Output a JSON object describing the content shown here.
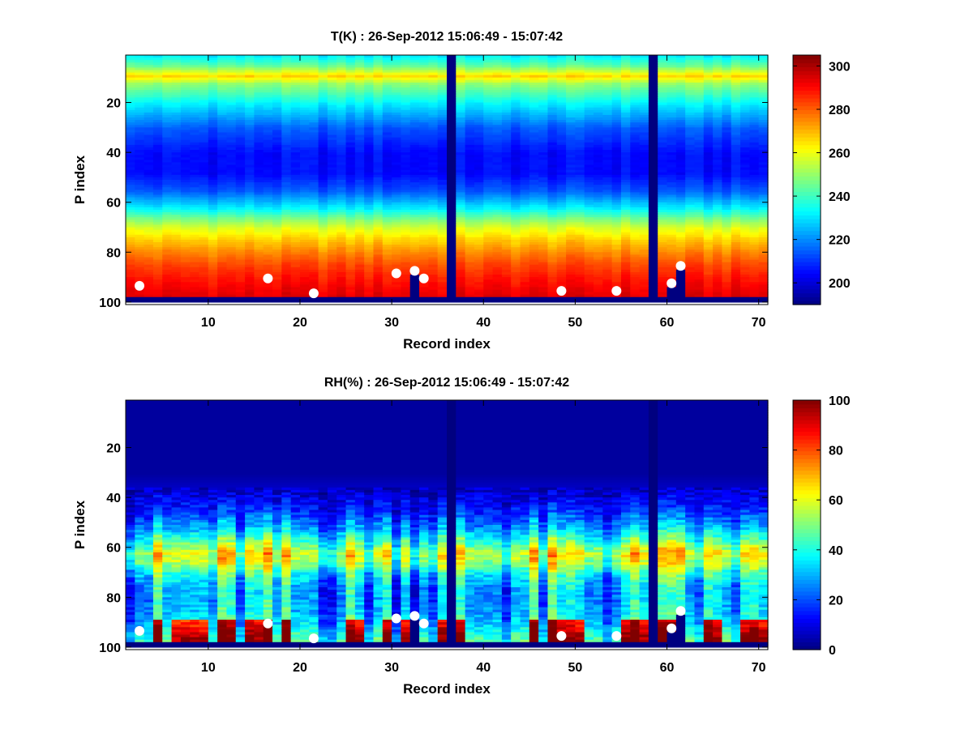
{
  "colormap": "jet",
  "background": "#ffffff",
  "chart_data": [
    {
      "type": "heatmap",
      "title": "T(K) : 26-Sep-2012 15:06:49 - 15:07:42",
      "xlabel": "Record index",
      "ylabel": "P index",
      "xlim": [
        1,
        71
      ],
      "ylim": [
        1,
        101
      ],
      "y_reversed": true,
      "xticks": [
        10,
        20,
        30,
        40,
        50,
        60,
        70
      ],
      "yticks": [
        20,
        40,
        60,
        80,
        100
      ],
      "records": 70,
      "levels": 100,
      "bottom_fill_value": 190,
      "missing_records": [
        36,
        58
      ],
      "profile": {
        "p_index": [
          1,
          5,
          9,
          12,
          20,
          30,
          40,
          48,
          55,
          62,
          66,
          70,
          75,
          80,
          85,
          90,
          95,
          98
        ],
        "value": [
          232,
          245,
          266,
          250,
          232,
          214,
          205,
          205,
          214,
          232,
          246,
          258,
          268,
          276,
          283,
          288,
          292,
          294
        ]
      },
      "clim": [
        190,
        305
      ],
      "colorbar_ticks": [
        200,
        220,
        240,
        260,
        280,
        300
      ],
      "surface_markers": [
        {
          "record": 2,
          "p_index": 93
        },
        {
          "record": 16,
          "p_index": 90
        },
        {
          "record": 21,
          "p_index": 96
        },
        {
          "record": 30,
          "p_index": 88
        },
        {
          "record": 32,
          "p_index": 87
        },
        {
          "record": 33,
          "p_index": 90
        },
        {
          "record": 48,
          "p_index": 95
        },
        {
          "record": 54,
          "p_index": 95
        },
        {
          "record": 60,
          "p_index": 92
        },
        {
          "record": 61,
          "p_index": 85
        }
      ]
    },
    {
      "type": "heatmap",
      "title": "RH(%) : 26-Sep-2012 15:06:49 - 15:07:42",
      "xlabel": "Record index",
      "ylabel": "P index",
      "xlim": [
        1,
        71
      ],
      "ylim": [
        1,
        101
      ],
      "y_reversed": true,
      "xticks": [
        10,
        20,
        30,
        40,
        50,
        60,
        70
      ],
      "yticks": [
        20,
        40,
        60,
        80,
        100
      ],
      "records": 70,
      "levels": 100,
      "bottom_fill_value": 0,
      "missing_records": [
        36,
        58
      ],
      "profile": {
        "p_index": [
          1,
          30,
          38,
          45,
          52,
          58,
          62,
          66,
          70,
          75,
          80,
          85,
          90,
          95,
          98
        ],
        "value": [
          3,
          3,
          8,
          15,
          28,
          45,
          58,
          52,
          38,
          30,
          28,
          30,
          35,
          45,
          50
        ]
      },
      "clim": [
        0,
        100
      ],
      "colorbar_ticks": [
        0,
        20,
        40,
        60,
        80,
        100
      ],
      "surface_markers": [
        {
          "record": 2,
          "p_index": 93
        },
        {
          "record": 16,
          "p_index": 90
        },
        {
          "record": 21,
          "p_index": 96
        },
        {
          "record": 30,
          "p_index": 88
        },
        {
          "record": 32,
          "p_index": 87
        },
        {
          "record": 33,
          "p_index": 90
        },
        {
          "record": 48,
          "p_index": 95
        },
        {
          "record": 54,
          "p_index": 95
        },
        {
          "record": 60,
          "p_index": 92
        },
        {
          "record": 61,
          "p_index": 85
        }
      ]
    }
  ]
}
